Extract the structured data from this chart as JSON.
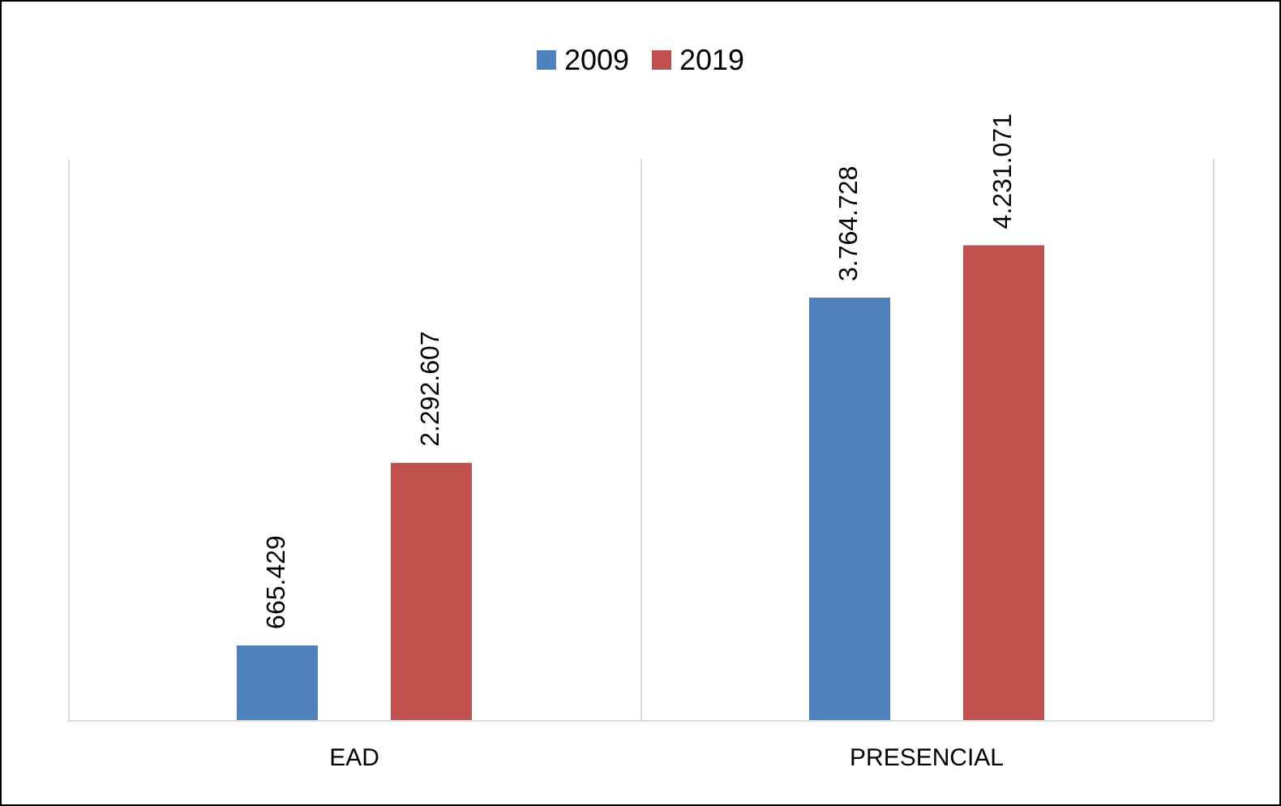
{
  "chart_data": {
    "type": "bar",
    "categories": [
      "EAD",
      "PRESENCIAL"
    ],
    "series": [
      {
        "name": "2009",
        "color": "#4f81bd",
        "values": [
          665429,
          3764728
        ],
        "value_labels": [
          "665.429",
          "3.764.728"
        ]
      },
      {
        "name": "2019",
        "color": "#c0504d",
        "values": [
          2292607,
          4231071
        ],
        "value_labels": [
          "2.292.607",
          "4.231.071"
        ]
      }
    ],
    "grid": "x",
    "legend": "top"
  }
}
